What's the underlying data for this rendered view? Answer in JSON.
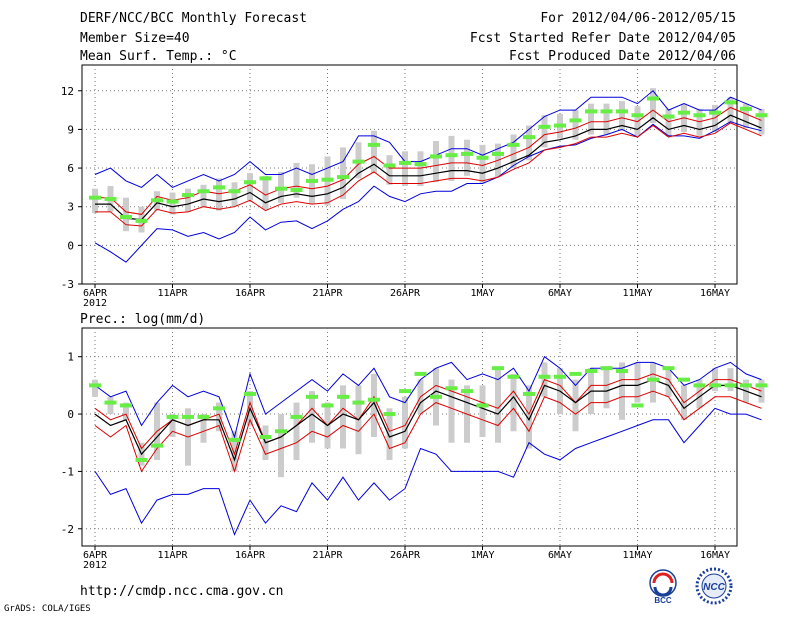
{
  "header": {
    "title": "DERF/NCC/BCC Monthly Forecast",
    "member_size": "Member Size=40",
    "variable1": "Mean Surf. Temp.: °C",
    "period": "For 2012/04/06-2012/05/15",
    "started": "Fcst Started Refer Date 2012/04/05",
    "produced": "Fcst Produced Date 2012/04/06"
  },
  "footer": {
    "url": "http://cmdp.ncc.cma.gov.cn",
    "credit": "GrADS: COLA/IGES",
    "logo1": "BCC",
    "logo2": "NCC"
  },
  "colors": {
    "blue": "#0000dd",
    "red": "#dd0000",
    "black": "#000000",
    "green": "#66ee44",
    "box": "#cccccc"
  },
  "chart_data": [
    {
      "type": "line",
      "title": "Mean Surf. Temp.: °C",
      "xtick_labels": [
        "6APR",
        "11APR",
        "16APR",
        "21APR",
        "26APR",
        "1MAY",
        "6MAY",
        "11MAY",
        "16MAY"
      ],
      "year_label": "2012",
      "ylim": [
        -3,
        14
      ],
      "yticks": [
        -3,
        0,
        3,
        6,
        9,
        12
      ],
      "series": [
        {
          "name": "blue-upper",
          "values": [
            5.5,
            6.0,
            5.0,
            4.5,
            5.5,
            4.5,
            5.0,
            5.5,
            5.0,
            5.5,
            6.5,
            5.5,
            5.5,
            6.0,
            5.5,
            6.0,
            6.5,
            8.5,
            8.5,
            8.0,
            6.5,
            6.5,
            7.0,
            7.5,
            7.5,
            7.0,
            7.5,
            8.0,
            9.0,
            10.0,
            10.5,
            10.5,
            11.5,
            11.5,
            11.5,
            11.0,
            12.0,
            10.5,
            11.0,
            10.5,
            10.5,
            11.5,
            11.0,
            10.5
          ]
        },
        {
          "name": "red-upper",
          "values": [
            3.7,
            3.7,
            2.6,
            2.4,
            3.8,
            3.5,
            3.7,
            4.2,
            4.0,
            4.2,
            4.7,
            3.9,
            4.4,
            4.6,
            4.4,
            4.6,
            5.1,
            6.3,
            6.9,
            6.0,
            6.0,
            6.0,
            6.2,
            6.4,
            6.4,
            6.2,
            6.6,
            7.1,
            7.6,
            8.6,
            8.8,
            9.1,
            9.6,
            9.6,
            9.9,
            9.6,
            10.5,
            9.6,
            9.9,
            9.6,
            9.9,
            10.7,
            10.2,
            9.7
          ]
        },
        {
          "name": "black-mean",
          "values": [
            3.2,
            3.2,
            2.1,
            2.0,
            3.3,
            3.0,
            3.2,
            3.6,
            3.4,
            3.6,
            4.1,
            3.3,
            3.8,
            4.0,
            3.8,
            4.0,
            4.5,
            5.6,
            6.3,
            5.4,
            5.4,
            5.4,
            5.6,
            5.8,
            5.8,
            5.6,
            6.0,
            6.5,
            7.0,
            8.0,
            8.2,
            8.5,
            9.0,
            9.0,
            9.3,
            9.0,
            9.9,
            9.0,
            9.3,
            9.0,
            9.3,
            10.1,
            9.6,
            9.1
          ]
        },
        {
          "name": "red-lower",
          "values": [
            2.6,
            2.6,
            1.6,
            1.5,
            2.8,
            2.5,
            2.6,
            3.0,
            2.8,
            3.0,
            3.5,
            2.7,
            3.2,
            3.4,
            3.2,
            3.3,
            3.9,
            5.0,
            5.7,
            4.8,
            4.8,
            4.8,
            5.0,
            5.2,
            5.2,
            5.0,
            5.3,
            5.9,
            6.4,
            7.4,
            7.6,
            7.9,
            8.4,
            8.4,
            8.7,
            8.4,
            9.3,
            8.4,
            8.7,
            8.4,
            8.7,
            9.5,
            9.0,
            8.5
          ]
        },
        {
          "name": "blue-lower",
          "values": [
            0.2,
            -0.5,
            -1.3,
            0.0,
            1.3,
            1.2,
            0.7,
            1.0,
            0.5,
            1.0,
            2.2,
            1.2,
            1.8,
            1.9,
            1.3,
            1.9,
            2.8,
            3.4,
            4.6,
            3.8,
            3.4,
            4.0,
            4.2,
            4.2,
            4.8,
            4.8,
            5.3,
            6.2,
            6.9,
            7.4,
            7.7,
            7.8,
            8.3,
            8.6,
            9.0,
            8.4,
            9.4,
            8.5,
            8.5,
            8.3,
            8.9,
            9.6,
            9.2,
            8.9
          ]
        },
        {
          "name": "green-obs",
          "values": [
            3.7,
            3.6,
            2.2,
            1.9,
            3.5,
            3.4,
            3.9,
            4.2,
            4.5,
            4.2,
            4.9,
            5.2,
            4.4,
            4.3,
            5.0,
            5.1,
            5.3,
            6.5,
            7.8,
            6.2,
            6.4,
            6.3,
            6.9,
            7.0,
            7.1,
            6.8,
            7.1,
            7.8,
            8.4,
            9.2,
            9.3,
            9.7,
            10.4,
            10.4,
            10.4,
            10.1,
            11.4,
            10.0,
            10.3,
            10.1,
            10.3,
            11.1,
            10.6,
            10.1
          ]
        },
        {
          "name": "box-low",
          "values": [
            2.5,
            2.6,
            1.1,
            1.0,
            2.7,
            2.4,
            2.6,
            3.0,
            2.7,
            3.0,
            3.5,
            2.8,
            3.3,
            3.7,
            3.2,
            3.1,
            3.6,
            5.2,
            5.6,
            4.7,
            4.6,
            4.6,
            4.9,
            5.0,
            5.4,
            4.8,
            5.3,
            6.0,
            6.6,
            7.6,
            8.3,
            8.2,
            8.6,
            8.6,
            8.9,
            8.5,
            9.5,
            8.5,
            8.8,
            8.5,
            8.8,
            9.5,
            9.1,
            8.6
          ]
        },
        {
          "name": "box-high",
          "values": [
            4.4,
            4.6,
            3.7,
            3.0,
            4.2,
            4.1,
            4.4,
            4.7,
            5.2,
            4.9,
            5.6,
            5.4,
            5.7,
            6.4,
            6.3,
            6.9,
            7.6,
            8.0,
            8.9,
            7.0,
            7.3,
            7.3,
            8.1,
            8.5,
            8.2,
            7.8,
            7.9,
            8.6,
            9.3,
            10.1,
            10.2,
            10.5,
            11.0,
            11.0,
            11.2,
            10.8,
            12.2,
            10.6,
            11.0,
            10.6,
            10.9,
            11.5,
            11.0,
            10.6
          ]
        }
      ]
    },
    {
      "type": "line",
      "title": "Prec.: log(mm/d)",
      "xtick_labels": [
        "6APR",
        "11APR",
        "16APR",
        "21APR",
        "26APR",
        "1MAY",
        "6MAY",
        "11MAY",
        "16MAY"
      ],
      "year_label": "2012",
      "ylim": [
        -2.3,
        1.5
      ],
      "yticks": [
        -2,
        -1,
        0,
        1
      ],
      "series": [
        {
          "name": "blue-upper",
          "values": [
            0.5,
            0.3,
            0.4,
            -0.2,
            0.2,
            0.5,
            0.3,
            0.4,
            0.3,
            -0.4,
            0.7,
            0.0,
            0.2,
            0.4,
            0.6,
            0.4,
            0.7,
            0.5,
            0.8,
            0.3,
            0.2,
            0.6,
            0.8,
            0.9,
            0.6,
            0.7,
            0.6,
            0.8,
            0.4,
            1.0,
            0.8,
            0.5,
            0.8,
            0.8,
            0.8,
            0.9,
            0.9,
            0.8,
            0.5,
            0.6,
            0.8,
            0.9,
            0.7,
            0.6
          ]
        },
        {
          "name": "red-upper",
          "values": [
            0.1,
            -0.1,
            0.0,
            -0.6,
            -0.3,
            -0.1,
            -0.2,
            -0.1,
            0.0,
            -0.7,
            0.2,
            -0.5,
            -0.4,
            -0.2,
            0.1,
            -0.2,
            0.1,
            -0.1,
            0.3,
            -0.3,
            -0.2,
            0.3,
            0.5,
            0.4,
            0.3,
            0.2,
            0.1,
            0.4,
            0.0,
            0.6,
            0.5,
            0.2,
            0.5,
            0.5,
            0.6,
            0.6,
            0.7,
            0.6,
            0.2,
            0.4,
            0.6,
            0.6,
            0.5,
            0.4
          ]
        },
        {
          "name": "black-mean",
          "values": [
            0.0,
            -0.2,
            -0.1,
            -0.7,
            -0.4,
            -0.1,
            -0.2,
            -0.1,
            -0.1,
            -0.8,
            0.1,
            -0.5,
            -0.4,
            -0.2,
            0.0,
            -0.2,
            0.0,
            -0.1,
            0.2,
            -0.4,
            -0.3,
            0.2,
            0.4,
            0.3,
            0.2,
            0.1,
            0.0,
            0.3,
            -0.1,
            0.5,
            0.4,
            0.2,
            0.4,
            0.4,
            0.5,
            0.5,
            0.6,
            0.5,
            0.1,
            0.3,
            0.5,
            0.5,
            0.4,
            0.3
          ]
        },
        {
          "name": "red-lower",
          "values": [
            -0.2,
            -0.4,
            -0.2,
            -1.0,
            -0.6,
            -0.3,
            -0.4,
            -0.3,
            -0.2,
            -1.0,
            -0.1,
            -0.7,
            -0.6,
            -0.5,
            -0.3,
            -0.4,
            -0.2,
            -0.3,
            0.0,
            -0.6,
            -0.5,
            0.0,
            0.2,
            0.1,
            0.0,
            -0.1,
            -0.2,
            0.1,
            -0.3,
            0.3,
            0.2,
            0.0,
            0.2,
            0.2,
            0.3,
            0.3,
            0.4,
            0.3,
            -0.1,
            0.1,
            0.3,
            0.3,
            0.2,
            0.1
          ]
        },
        {
          "name": "blue-lower",
          "values": [
            -1.0,
            -1.4,
            -1.3,
            -1.9,
            -1.5,
            -1.4,
            -1.4,
            -1.3,
            -1.3,
            -2.1,
            -1.5,
            -1.9,
            -1.6,
            -1.7,
            -1.2,
            -1.5,
            -1.1,
            -1.5,
            -1.2,
            -1.5,
            -1.3,
            -0.6,
            -0.7,
            -1.0,
            -1.0,
            -1.0,
            -1.0,
            -1.1,
            -0.5,
            -0.7,
            -0.8,
            -0.6,
            -0.5,
            -0.4,
            -0.3,
            -0.2,
            -0.1,
            -0.1,
            -0.5,
            -0.2,
            0.1,
            0.0,
            0.0,
            -0.1
          ]
        },
        {
          "name": "green-obs",
          "values": [
            0.5,
            0.2,
            0.15,
            -0.8,
            -0.55,
            -0.05,
            -0.05,
            -0.05,
            0.1,
            -0.45,
            0.35,
            -0.4,
            -0.3,
            -0.05,
            0.3,
            0.15,
            0.3,
            0.2,
            0.25,
            0.0,
            0.4,
            0.7,
            0.3,
            0.45,
            0.4,
            0.15,
            0.8,
            0.65,
            0.35,
            0.65,
            0.65,
            0.7,
            0.75,
            0.8,
            0.75,
            0.15,
            0.6,
            0.8,
            0.6,
            0.5,
            0.5,
            0.5,
            0.5,
            0.5
          ]
        },
        {
          "name": "box-low",
          "values": [
            0.3,
            0.0,
            -0.1,
            -0.9,
            -0.8,
            -0.4,
            -0.9,
            -0.5,
            -0.3,
            -1.0,
            -0.2,
            -0.8,
            -1.1,
            -0.8,
            -0.5,
            -0.6,
            -0.6,
            -0.7,
            -0.4,
            -0.8,
            -0.6,
            0.0,
            -0.2,
            -0.5,
            -0.5,
            -0.4,
            -0.5,
            -0.3,
            -0.6,
            0.3,
            0.0,
            -0.3,
            0.0,
            0.1,
            -0.1,
            0.2,
            0.2,
            0.3,
            -0.1,
            0.1,
            0.4,
            0.4,
            0.2,
            0.2
          ]
        },
        {
          "name": "box-high",
          "values": [
            0.6,
            0.3,
            0.2,
            -0.5,
            0.2,
            0.0,
            0.1,
            0.0,
            0.2,
            -0.3,
            0.4,
            -0.2,
            0.0,
            0.2,
            0.4,
            0.2,
            0.5,
            0.5,
            0.7,
            0.1,
            0.3,
            0.6,
            0.8,
            0.6,
            0.5,
            0.5,
            0.8,
            0.7,
            0.5,
            0.9,
            0.8,
            0.6,
            0.8,
            0.8,
            0.9,
            0.9,
            0.9,
            0.8,
            0.5,
            0.6,
            0.8,
            0.8,
            0.6,
            0.6
          ]
        }
      ]
    }
  ]
}
